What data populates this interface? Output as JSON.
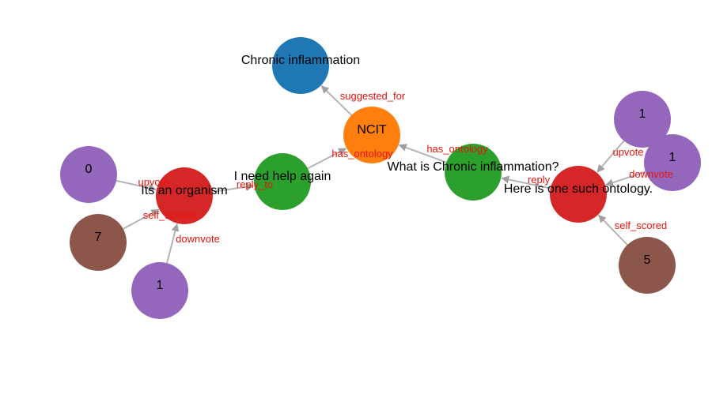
{
  "colors": {
    "blue": "#1f77b4",
    "orange": "#ff7f0e",
    "green": "#2ca02c",
    "red": "#d62728",
    "purple": "#9467bd",
    "brown": "#8c564b",
    "edge": "#b4b4b4",
    "arrow": "#a0a0a0",
    "edge_label": "#e8140c"
  },
  "nodes": [
    {
      "id": "chronic",
      "label": "Chronic inflammation",
      "color": "blue"
    },
    {
      "id": "ncit",
      "label": "NCIT",
      "color": "orange"
    },
    {
      "id": "help",
      "label": "I need help again",
      "color": "green"
    },
    {
      "id": "what",
      "label": "What is Chronic inflammation?",
      "color": "green"
    },
    {
      "id": "organism",
      "label": "Its an organism",
      "color": "red"
    },
    {
      "id": "ontology",
      "label": "Here is one such ontology.",
      "color": "red"
    },
    {
      "id": "v0",
      "label": "0",
      "color": "purple"
    },
    {
      "id": "v7",
      "label": "7",
      "color": "brown"
    },
    {
      "id": "v1a",
      "label": "1",
      "color": "purple"
    },
    {
      "id": "v1b",
      "label": "1",
      "color": "purple"
    },
    {
      "id": "v1c",
      "label": "1",
      "color": "purple"
    },
    {
      "id": "v5",
      "label": "5",
      "color": "brown"
    }
  ],
  "edges": [
    {
      "source": "ncit",
      "target": "chronic",
      "label": "suggested_for"
    },
    {
      "source": "help",
      "target": "ncit",
      "label": "has_ontology"
    },
    {
      "source": "what",
      "target": "ncit",
      "label": "has_ontology"
    },
    {
      "source": "organism",
      "target": "help",
      "label": "reply_to"
    },
    {
      "source": "ontology",
      "target": "what",
      "label": "reply"
    },
    {
      "source": "v0",
      "target": "organism",
      "label": "upvote"
    },
    {
      "source": "v7",
      "target": "organism",
      "label": "self_scored"
    },
    {
      "source": "v1a",
      "target": "organism",
      "label": "downvote"
    },
    {
      "source": "v1b",
      "target": "ontology",
      "label": "upvote"
    },
    {
      "source": "v1c",
      "target": "ontology",
      "label": "downvote"
    },
    {
      "source": "v5",
      "target": "ontology",
      "label": "self_scored"
    }
  ]
}
